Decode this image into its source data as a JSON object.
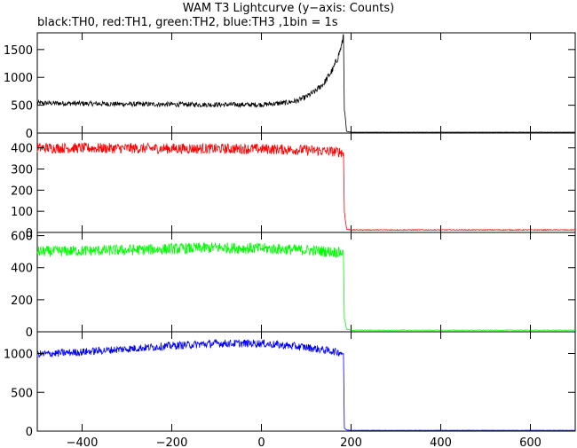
{
  "title": "WAM T3 Lightcurve (y−axis: Counts)",
  "subtitle": "black:TH0, red:TH1, green:TH2, blue:TH3 ,1bin = 1s",
  "chart_data": {
    "type": "line",
    "title": "WAM T3 Lightcurve (y−axis: Counts)",
    "subtitle": "black:TH0, red:TH1, green:TH2, blue:TH3 ,1bin = 1s",
    "xlim": [
      -500,
      700
    ],
    "x_ticks": [
      -400,
      -200,
      0,
      200,
      400,
      600
    ],
    "x_tick_labels": [
      "−400",
      "−200",
      "0",
      "200",
      "400",
      "600"
    ],
    "grid": false,
    "series": [
      {
        "name": "TH0",
        "color": "#000000",
        "ylim": [
          0,
          1800
        ],
        "y_ticks": [
          0,
          500,
          1000,
          1500
        ],
        "x": [
          -500,
          -400,
          -300,
          -200,
          -100,
          0,
          50,
          80,
          100,
          120,
          140,
          160,
          170,
          180,
          183,
          185,
          190,
          200,
          400,
          700
        ],
        "values": [
          540,
          530,
          520,
          515,
          510,
          510,
          540,
          580,
          650,
          750,
          900,
          1150,
          1350,
          1600,
          1780,
          430,
          30,
          15,
          15,
          15
        ],
        "noise": 45
      },
      {
        "name": "TH1",
        "color": "#ff0000",
        "ylim": [
          0,
          470
        ],
        "y_ticks": [
          0,
          100,
          200,
          300,
          400
        ],
        "x": [
          -500,
          -300,
          -100,
          0,
          100,
          180,
          183,
          185,
          190,
          200,
          700
        ],
        "values": [
          400,
          398,
          396,
          395,
          390,
          380,
          370,
          100,
          15,
          12,
          12
        ],
        "noise": 25
      },
      {
        "name": "TH2",
        "color": "#00ff00",
        "ylim": [
          0,
          620
        ],
        "y_ticks": [
          0,
          200,
          400,
          600
        ],
        "x": [
          -500,
          -300,
          -100,
          0,
          100,
          180,
          183,
          185,
          190,
          200,
          700
        ],
        "values": [
          500,
          510,
          525,
          520,
          510,
          495,
          480,
          90,
          15,
          10,
          10
        ],
        "noise": 35
      },
      {
        "name": "TH3",
        "color": "#0000ff",
        "ylim": [
          0,
          1280
        ],
        "y_ticks": [
          0,
          500,
          1000
        ],
        "x": [
          -500,
          -400,
          -300,
          -200,
          -100,
          0,
          100,
          180,
          183,
          185,
          190,
          200,
          700
        ],
        "values": [
          990,
          1020,
          1060,
          1100,
          1130,
          1130,
          1080,
          1010,
          1000,
          40,
          15,
          10,
          10
        ],
        "noise": 50
      }
    ]
  }
}
